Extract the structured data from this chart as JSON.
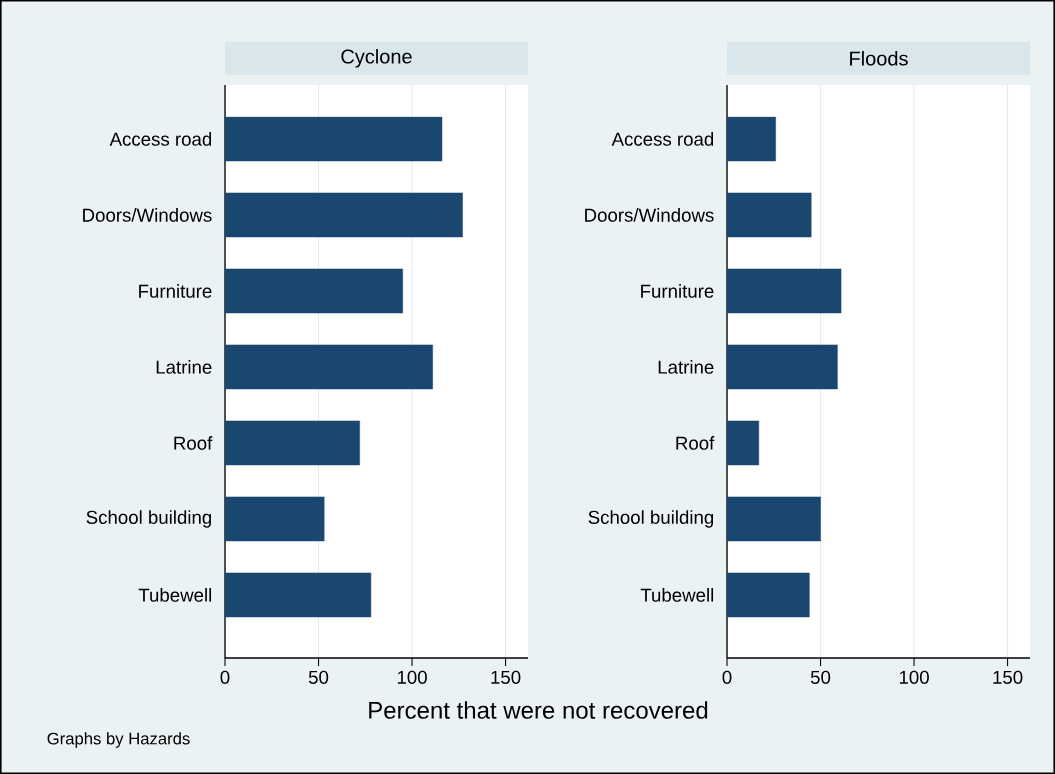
{
  "chart_data": [
    {
      "type": "bar",
      "orientation": "horizontal",
      "title": "Cyclone",
      "categories": [
        "Access road",
        "Doors/Windows",
        "Furniture",
        "Latrine",
        "Roof",
        "School building",
        "Tubewell"
      ],
      "values": [
        116,
        127,
        95,
        111,
        72,
        53,
        78
      ],
      "color": "#1a476f",
      "xlim": [
        0,
        162
      ],
      "xticks": [
        0,
        50,
        100,
        150
      ],
      "grid": "x",
      "xlabel": "Percent that were not recovered",
      "annotations": [
        "Graphs by Hazards"
      ]
    },
    {
      "type": "bar",
      "orientation": "horizontal",
      "title": "Floods",
      "categories": [
        "Access road",
        "Doors/Windows",
        "Furniture",
        "Latrine",
        "Roof",
        "School building",
        "Tubewell"
      ],
      "values": [
        26,
        45,
        61,
        59,
        17,
        50,
        44
      ],
      "color": "#1a476f",
      "xlim": [
        0,
        162
      ],
      "xticks": [
        0,
        50,
        100,
        150
      ],
      "grid": "x"
    }
  ]
}
